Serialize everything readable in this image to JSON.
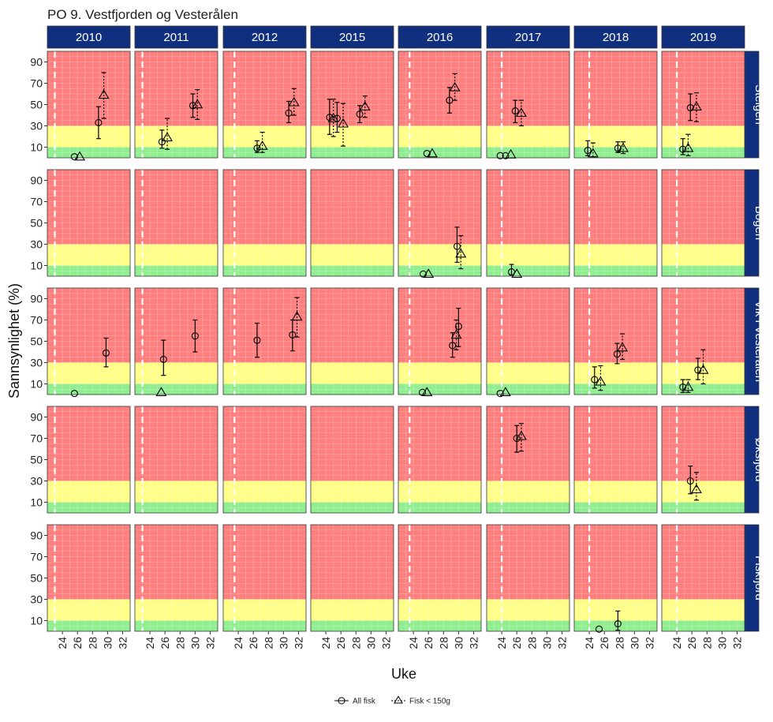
{
  "chart_data": {
    "type": "scatter",
    "title": "PO 9. Vestfjorden og Vesterålen",
    "xlabel": "Uke",
    "ylabel": "Sannsynlighet (%)",
    "years": [
      "2010",
      "2011",
      "2012",
      "2015",
      "2016",
      "2017",
      "2018",
      "2019"
    ],
    "locations": [
      "Steigen",
      "Bogen",
      "Vik i Vesterålen",
      "Øksfjord",
      "Fiskfjord"
    ],
    "xlim": [
      22,
      33
    ],
    "xticks": [
      24,
      26,
      28,
      30,
      32
    ],
    "ylim": [
      0,
      100
    ],
    "yticks": [
      10,
      30,
      50,
      70,
      90
    ],
    "bands": [
      {
        "from": 0,
        "to": 10,
        "color": "#90EE90"
      },
      {
        "from": 10,
        "to": 30,
        "color": "#FFFF88"
      },
      {
        "from": 30,
        "to": 100,
        "color": "#FF7F7F"
      }
    ],
    "dashed_line_week": {
      "2010": 23,
      "2011": 23,
      "2012": 23.5,
      "2016": 23.5,
      "2017": 24,
      "2018": 24,
      "2019": 24
    },
    "series": [
      {
        "name": "All fisk",
        "marker": "circle",
        "points": [
          {
            "loc": 0,
            "year": 0,
            "x": 25.6,
            "y": 1
          },
          {
            "loc": 0,
            "year": 0,
            "x": 28.8,
            "y": 33,
            "lo": 18,
            "hi": 48
          },
          {
            "loc": 0,
            "year": 1,
            "x": 25.6,
            "y": 15,
            "lo": 9,
            "hi": 26
          },
          {
            "loc": 0,
            "year": 1,
            "x": 29.7,
            "y": 49,
            "lo": 38,
            "hi": 60
          },
          {
            "loc": 0,
            "year": 2,
            "x": 26.5,
            "y": 9,
            "lo": 5,
            "hi": 16
          },
          {
            "loc": 0,
            "year": 2,
            "x": 30.7,
            "y": 42,
            "lo": 33,
            "hi": 53
          },
          {
            "loc": 0,
            "year": 3,
            "x": 24.5,
            "y": 38,
            "lo": 22,
            "hi": 55
          },
          {
            "loc": 0,
            "year": 3,
            "x": 25.5,
            "y": 37,
            "lo": 24,
            "hi": 52
          },
          {
            "loc": 0,
            "year": 3,
            "x": 28.5,
            "y": 41,
            "lo": 33,
            "hi": 49
          },
          {
            "loc": 0,
            "year": 4,
            "x": 25.8,
            "y": 4
          },
          {
            "loc": 0,
            "year": 4,
            "x": 28.8,
            "y": 54,
            "lo": 42,
            "hi": 66
          },
          {
            "loc": 0,
            "year": 5,
            "x": 23.8,
            "y": 2
          },
          {
            "loc": 0,
            "year": 5,
            "x": 24.5,
            "y": 2
          },
          {
            "loc": 0,
            "year": 5,
            "x": 25.8,
            "y": 44,
            "lo": 33,
            "hi": 54
          },
          {
            "loc": 0,
            "year": 6,
            "x": 23.8,
            "y": 7,
            "lo": 2,
            "hi": 16
          },
          {
            "loc": 0,
            "year": 6,
            "x": 27.8,
            "y": 9,
            "lo": 5,
            "hi": 15
          },
          {
            "loc": 0,
            "year": 7,
            "x": 24.8,
            "y": 8,
            "lo": 3,
            "hi": 18
          },
          {
            "loc": 0,
            "year": 7,
            "x": 25.8,
            "y": 47,
            "lo": 35,
            "hi": 60
          },
          {
            "loc": 1,
            "year": 4,
            "x": 25.3,
            "y": 2
          },
          {
            "loc": 1,
            "year": 4,
            "x": 29.8,
            "y": 28,
            "lo": 13,
            "hi": 46
          },
          {
            "loc": 1,
            "year": 5,
            "x": 25.3,
            "y": 4,
            "lo": 1,
            "hi": 11
          },
          {
            "loc": 2,
            "year": 0,
            "x": 25.6,
            "y": 1
          },
          {
            "loc": 2,
            "year": 0,
            "x": 29.8,
            "y": 39,
            "lo": 26,
            "hi": 53
          },
          {
            "loc": 2,
            "year": 1,
            "x": 25.8,
            "y": 33,
            "lo": 18,
            "hi": 51
          },
          {
            "loc": 2,
            "year": 1,
            "x": 30,
            "y": 55,
            "lo": 40,
            "hi": 70
          },
          {
            "loc": 2,
            "year": 2,
            "x": 26.5,
            "y": 51,
            "lo": 35,
            "hi": 67
          },
          {
            "loc": 2,
            "year": 2,
            "x": 31.2,
            "y": 56,
            "lo": 41,
            "hi": 70
          },
          {
            "loc": 2,
            "year": 4,
            "x": 25.2,
            "y": 2
          },
          {
            "loc": 2,
            "year": 4,
            "x": 29.2,
            "y": 46,
            "lo": 35,
            "hi": 58
          },
          {
            "loc": 2,
            "year": 4,
            "x": 30,
            "y": 64,
            "lo": 45,
            "hi": 81
          },
          {
            "loc": 2,
            "year": 5,
            "x": 23.8,
            "y": 1
          },
          {
            "loc": 2,
            "year": 6,
            "x": 24.7,
            "y": 14,
            "lo": 6,
            "hi": 26
          },
          {
            "loc": 2,
            "year": 6,
            "x": 27.7,
            "y": 38,
            "lo": 29,
            "hi": 48
          },
          {
            "loc": 2,
            "year": 7,
            "x": 24.8,
            "y": 7,
            "lo": 2,
            "hi": 14
          },
          {
            "loc": 2,
            "year": 7,
            "x": 26.8,
            "y": 23,
            "lo": 14,
            "hi": 34
          },
          {
            "loc": 3,
            "year": 5,
            "x": 26,
            "y": 70,
            "lo": 57,
            "hi": 82
          },
          {
            "loc": 3,
            "year": 7,
            "x": 25.8,
            "y": 30,
            "lo": 18,
            "hi": 44
          },
          {
            "loc": 4,
            "year": 6,
            "x": 25.3,
            "y": 2
          },
          {
            "loc": 4,
            "year": 6,
            "x": 27.8,
            "y": 7,
            "lo": 1,
            "hi": 19
          }
        ]
      },
      {
        "name": "Fisk < 150g",
        "marker": "triangle",
        "points": [
          {
            "loc": 0,
            "year": 0,
            "x": 26.3,
            "y": 1
          },
          {
            "loc": 0,
            "year": 0,
            "x": 29.5,
            "y": 59,
            "lo": 37,
            "hi": 80
          },
          {
            "loc": 0,
            "year": 1,
            "x": 26.3,
            "y": 19,
            "lo": 8,
            "hi": 37
          },
          {
            "loc": 0,
            "year": 1,
            "x": 30.3,
            "y": 50,
            "lo": 36,
            "hi": 64
          },
          {
            "loc": 0,
            "year": 2,
            "x": 27.2,
            "y": 11,
            "lo": 5,
            "hi": 24
          },
          {
            "loc": 0,
            "year": 2,
            "x": 31.4,
            "y": 52,
            "lo": 40,
            "hi": 65
          },
          {
            "loc": 0,
            "year": 3,
            "x": 25,
            "y": 37,
            "lo": 20,
            "hi": 55
          },
          {
            "loc": 0,
            "year": 3,
            "x": 26.3,
            "y": 32,
            "lo": 11,
            "hi": 51
          },
          {
            "loc": 0,
            "year": 3,
            "x": 29.2,
            "y": 48,
            "lo": 38,
            "hi": 58
          },
          {
            "loc": 0,
            "year": 4,
            "x": 26.5,
            "y": 4
          },
          {
            "loc": 0,
            "year": 4,
            "x": 29.5,
            "y": 66,
            "lo": 54,
            "hi": 79
          },
          {
            "loc": 0,
            "year": 5,
            "x": 25.2,
            "y": 3
          },
          {
            "loc": 0,
            "year": 5,
            "x": 26.6,
            "y": 42,
            "lo": 30,
            "hi": 54
          },
          {
            "loc": 0,
            "year": 6,
            "x": 24.5,
            "y": 4,
            "lo": 1,
            "hi": 14
          },
          {
            "loc": 0,
            "year": 6,
            "x": 28.5,
            "y": 9,
            "lo": 4,
            "hi": 15
          },
          {
            "loc": 0,
            "year": 7,
            "x": 25.5,
            "y": 9,
            "lo": 2,
            "hi": 22
          },
          {
            "loc": 0,
            "year": 7,
            "x": 26.6,
            "y": 48,
            "lo": 34,
            "hi": 61
          },
          {
            "loc": 1,
            "year": 4,
            "x": 26,
            "y": 2
          },
          {
            "loc": 1,
            "year": 4,
            "x": 30.3,
            "y": 21,
            "lo": 7,
            "hi": 38
          },
          {
            "loc": 1,
            "year": 5,
            "x": 26,
            "y": 2
          },
          {
            "loc": 2,
            "year": 1,
            "x": 25.5,
            "y": 2
          },
          {
            "loc": 2,
            "year": 2,
            "x": 31.8,
            "y": 73,
            "lo": 54,
            "hi": 91
          },
          {
            "loc": 2,
            "year": 4,
            "x": 25.8,
            "y": 2
          },
          {
            "loc": 2,
            "year": 4,
            "x": 29.7,
            "y": 56,
            "lo": 42,
            "hi": 70
          },
          {
            "loc": 2,
            "year": 5,
            "x": 24.5,
            "y": 2
          },
          {
            "loc": 2,
            "year": 6,
            "x": 25.5,
            "y": 12,
            "lo": 4,
            "hi": 27
          },
          {
            "loc": 2,
            "year": 6,
            "x": 28.4,
            "y": 44,
            "lo": 33,
            "hi": 57
          },
          {
            "loc": 2,
            "year": 7,
            "x": 25.5,
            "y": 7,
            "lo": 2,
            "hi": 14
          },
          {
            "loc": 2,
            "year": 7,
            "x": 27.5,
            "y": 23,
            "lo": 10,
            "hi": 42
          },
          {
            "loc": 3,
            "year": 5,
            "x": 26.6,
            "y": 72,
            "lo": 58,
            "hi": 84
          },
          {
            "loc": 3,
            "year": 7,
            "x": 26.6,
            "y": 22,
            "lo": 12,
            "hi": 38
          }
        ]
      }
    ],
    "legend": {
      "position": "bottom",
      "entries": [
        "All fisk",
        "Fisk < 150g"
      ]
    }
  }
}
